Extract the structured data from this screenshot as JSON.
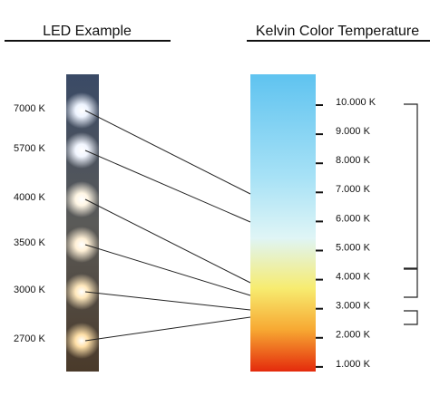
{
  "header": {
    "left_title": "LED Example",
    "right_title": "Kelvin Color Temperature"
  },
  "leds": [
    "7000 K",
    "5700 K",
    "4000 K",
    "3500 K",
    "3000 K",
    "2700 K"
  ],
  "scale": [
    "10.000 K",
    "9.000 K",
    "8.000 K",
    "7.000 K",
    "6.000 K",
    "5.000 K",
    "4.000 K",
    "3.000 K",
    "2.000 K",
    "1.000 K"
  ]
}
